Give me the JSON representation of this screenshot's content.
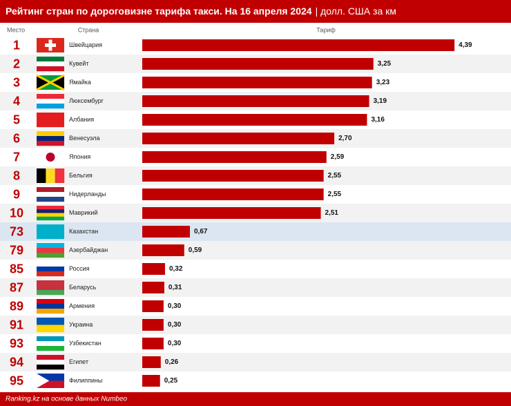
{
  "chart_data": {
    "type": "bar",
    "orientation": "horizontal",
    "title": "Рейтинг стран по дороговизне тарифа такси. На 16 апреля 2024",
    "subtitle": "| долл. США за км",
    "headers": [
      "Место",
      "Страна",
      "Тариф"
    ],
    "ranks": [
      1,
      2,
      3,
      4,
      5,
      6,
      7,
      8,
      9,
      10,
      73,
      79,
      85,
      87,
      89,
      91,
      93,
      94,
      95
    ],
    "categories": [
      "Швейцария",
      "Кувейт",
      "Ямайка",
      "Люксембург",
      "Албания",
      "Венесуэла",
      "Япония",
      "Бельгия",
      "Нидерланды",
      "Маврикий",
      "Казахстан",
      "Азербайджан",
      "Россия",
      "Беларусь",
      "Армения",
      "Украина",
      "Узбекистан",
      "Египет",
      "Филиппины"
    ],
    "values": [
      4.39,
      3.25,
      3.23,
      3.19,
      3.16,
      2.7,
      2.59,
      2.55,
      2.55,
      2.51,
      0.67,
      0.59,
      0.32,
      0.31,
      0.3,
      0.3,
      0.3,
      0.26,
      0.25
    ],
    "value_labels": [
      "4,39",
      "3,25",
      "3,23",
      "3,19",
      "3,16",
      "2,70",
      "2,59",
      "2,55",
      "2,55",
      "2,51",
      "0,67",
      "0,59",
      "0,32",
      "0,31",
      "0,30",
      "0,30",
      "0,30",
      "0,26",
      "0,25"
    ],
    "color": "#c00000",
    "xlim": [
      0,
      4.5
    ],
    "highlight": 10,
    "highlight_color": "#dce6f2",
    "source": "Ranking.kz на основе данных Numbeo"
  }
}
